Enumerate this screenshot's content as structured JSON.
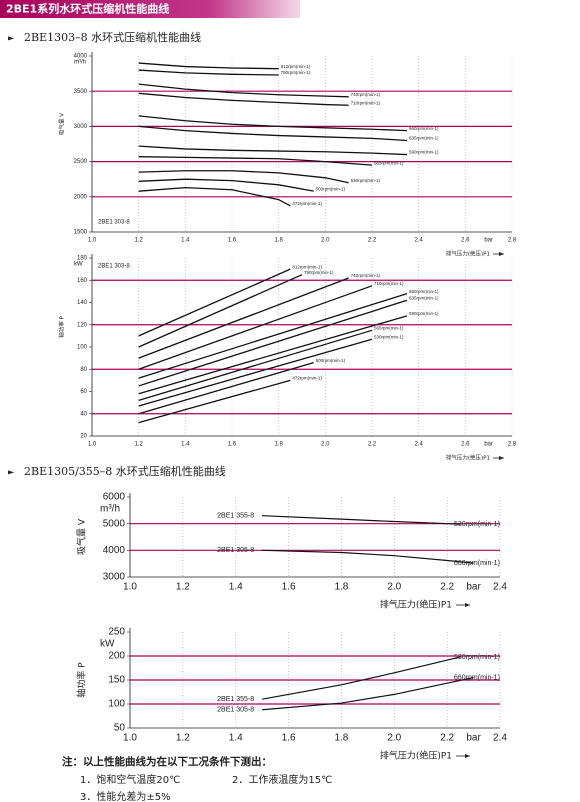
{
  "header": {
    "title": "2BE1系列水环式压缩机性能曲线"
  },
  "sections": [
    {
      "title": "2BE1303–8 水环式压缩机性能曲线"
    },
    {
      "title": "2BE1305/355–8 水环式压缩机性能曲线"
    }
  ],
  "chart_data": [
    {
      "type": "line",
      "y_unit": "m³/h",
      "y_label": "吸气量 V",
      "x_unit": "bar",
      "x_label": "排气压力(绝压)P1",
      "annotation": "2BE1 303-8",
      "xlim": [
        1,
        2.8
      ],
      "ylim": [
        1500,
        4000
      ],
      "xticks": [
        {
          "value": 1,
          "label": "1.0"
        },
        1.2,
        1.4,
        1.6,
        1.8,
        {
          "value": 2,
          "label": "2.0"
        },
        2.2,
        2.4,
        2.6,
        2.8
      ],
      "yticks": [
        1500,
        2000,
        2500,
        3000,
        3500,
        4000
      ],
      "ref_lines": [
        2000,
        2500,
        3000,
        3500
      ],
      "ref_color": "#b0005c",
      "color": "#111111",
      "series": [
        {
          "name": "812rpm(min-1)",
          "x": [
            1.2,
            1.4,
            1.6,
            1.8
          ],
          "values": [
            3900,
            3850,
            3830,
            3820
          ]
        },
        {
          "name": "790rpm(min-1)",
          "x": [
            1.2,
            1.4,
            1.6,
            1.8
          ],
          "values": [
            3800,
            3760,
            3740,
            3730
          ]
        },
        {
          "name": "740rpm(min-1)",
          "x": [
            1.2,
            1.4,
            1.6,
            1.8,
            2,
            2.1
          ],
          "values": [
            3600,
            3530,
            3480,
            3450,
            3430,
            3420
          ]
        },
        {
          "name": "710rpm(min-1)",
          "x": [
            1.2,
            1.4,
            1.6,
            1.8,
            2,
            2.1
          ],
          "values": [
            3470,
            3410,
            3370,
            3340,
            3310,
            3300
          ]
        },
        {
          "name": "660rpm(min-1)",
          "x": [
            1.2,
            1.4,
            1.6,
            1.8,
            2,
            2.2,
            2.35
          ],
          "values": [
            3150,
            3080,
            3030,
            3000,
            2980,
            2960,
            2940
          ]
        },
        {
          "name": "635rpm(min-1)",
          "x": [
            1.2,
            1.4,
            1.6,
            1.8,
            2,
            2.2,
            2.35
          ],
          "values": [
            3000,
            2940,
            2900,
            2870,
            2850,
            2830,
            2800
          ]
        },
        {
          "name": "590rpm(min-1)",
          "x": [
            1.2,
            1.4,
            1.6,
            1.8,
            2,
            2.2,
            2.35
          ],
          "values": [
            2720,
            2680,
            2660,
            2650,
            2640,
            2620,
            2600
          ]
        },
        {
          "name": "565rpm(min-1)",
          "x": [
            1.2,
            1.4,
            1.6,
            1.8,
            2,
            2.2
          ],
          "values": [
            2570,
            2560,
            2550,
            2540,
            2500,
            2450
          ]
        },
        {
          "name": "530rpm(min-1)",
          "x": [
            1.2,
            1.4,
            1.6,
            1.8,
            2,
            2.1
          ],
          "values": [
            2350,
            2370,
            2370,
            2340,
            2270,
            2200
          ]
        },
        {
          "name": "500rpm(min-1)",
          "x": [
            1.2,
            1.4,
            1.6,
            1.8,
            1.95
          ],
          "values": [
            2220,
            2250,
            2230,
            2170,
            2080
          ]
        },
        {
          "name": "472rpm(min-1)",
          "x": [
            1.2,
            1.4,
            1.6,
            1.8,
            1.85
          ],
          "values": [
            2080,
            2130,
            2100,
            1960,
            1870
          ]
        }
      ]
    },
    {
      "type": "line",
      "y_unit": "kW",
      "y_label": "轴功率 P",
      "x_unit": "bar",
      "x_label": "排气压力(绝压)P1",
      "annotation": "2BE1 303-8",
      "xlim": [
        1,
        2.8
      ],
      "ylim": [
        20,
        180
      ],
      "xticks": [
        {
          "value": 1,
          "label": "1.0"
        },
        1.2,
        1.4,
        1.6,
        1.8,
        {
          "value": 2,
          "label": "2.0"
        },
        2.2,
        2.4,
        2.6,
        2.8
      ],
      "yticks": [
        20,
        40,
        60,
        80,
        100,
        120,
        140,
        160,
        180
      ],
      "ref_lines": [
        40,
        80,
        120,
        160
      ],
      "ref_color": "#b0005c",
      "color": "#111111",
      "series": [
        {
          "name": "812rpm(min-1)",
          "x": [
            1.2,
            1.85
          ],
          "values": [
            110,
            170
          ]
        },
        {
          "name": "790rpm(min-1)",
          "x": [
            1.2,
            1.9
          ],
          "values": [
            100,
            165
          ]
        },
        {
          "name": "740rpm(min-1)",
          "x": [
            1.2,
            2.1
          ],
          "values": [
            90,
            162
          ]
        },
        {
          "name": "710rpm(min-1)",
          "x": [
            1.2,
            2.2
          ],
          "values": [
            80,
            155
          ]
        },
        {
          "name": "660rpm(min-1)",
          "x": [
            1.2,
            2.35
          ],
          "values": [
            72,
            148
          ]
        },
        {
          "name": "635rpm(min-1)",
          "x": [
            1.2,
            2.35
          ],
          "values": [
            65,
            142
          ]
        },
        {
          "name": "590rpm(min-1)",
          "x": [
            1.2,
            2.35
          ],
          "values": [
            58,
            128
          ]
        },
        {
          "name": "565rpm(min-1)",
          "x": [
            1.2,
            2.2
          ],
          "values": [
            52,
            115
          ]
        },
        {
          "name": "530rpm(min-1)",
          "x": [
            1.2,
            2.2
          ],
          "values": [
            47,
            107
          ]
        },
        {
          "name": "500rpm(min-1)",
          "x": [
            1.2,
            1.95
          ],
          "values": [
            40,
            86
          ]
        },
        {
          "name": "472rpm(min-1)",
          "x": [
            1.2,
            1.85
          ],
          "values": [
            32,
            70
          ]
        }
      ]
    },
    {
      "type": "line",
      "y_unit": "m³/h",
      "y_label": "吸气量 V",
      "x_unit": "bar",
      "x_label": "排气压力(绝压)P1",
      "xlim": [
        1,
        2.4
      ],
      "ylim": [
        3000,
        6000
      ],
      "xticks": [
        {
          "value": 1,
          "label": "1.0"
        },
        1.2,
        1.4,
        1.6,
        1.8,
        {
          "value": 2,
          "label": "2.0"
        },
        2.2,
        2.4
      ],
      "yticks": [
        3000,
        4000,
        5000,
        6000
      ],
      "ref_lines": [
        4000,
        5000
      ],
      "ref_color": "#b0005c",
      "color": "#111111",
      "series": [
        {
          "name": "2BE1 355-8",
          "label": "530rpm(min-1)",
          "x": [
            1.5,
            1.8,
            2,
            2.25
          ],
          "values": [
            5300,
            5170,
            5080,
            4980
          ]
        },
        {
          "name": "2BE1 305-8",
          "label": "660rpm(min-1)",
          "x": [
            1.5,
            1.8,
            2,
            2.2,
            2.3
          ],
          "values": [
            4000,
            3920,
            3800,
            3620,
            3520
          ]
        }
      ]
    },
    {
      "type": "line",
      "y_unit": "kW",
      "y_label": "轴功率 P",
      "x_unit": "bar",
      "x_label": "排气压力(绝压)P1",
      "xlim": [
        1,
        2.4
      ],
      "ylim": [
        50,
        250
      ],
      "xticks": [
        {
          "value": 1,
          "label": "1.0"
        },
        1.2,
        1.4,
        1.6,
        1.8,
        {
          "value": 2,
          "label": "2.0"
        },
        2.2,
        2.4
      ],
      "yticks": [
        50,
        100,
        150,
        200,
        250
      ],
      "ref_lines": [
        100,
        150,
        200
      ],
      "ref_color": "#b0005c",
      "color": "#111111",
      "series": [
        {
          "name": "2BE1 355-8",
          "label": "530rpm(min-1)",
          "x": [
            1.5,
            1.8,
            2,
            2.25
          ],
          "values": [
            110,
            140,
            165,
            198
          ]
        },
        {
          "name": "2BE1 305-8",
          "label": "660rpm(min-1)",
          "x": [
            1.5,
            1.8,
            2,
            2.3
          ],
          "values": [
            88,
            102,
            120,
            155
          ]
        }
      ]
    }
  ],
  "notes": {
    "title": "注：以上性能曲线为在以下工况条件下测出：",
    "items": [
      "1．饱和空气温度20℃",
      "2．工作液温度为15℃",
      "3．性能允差为±5%"
    ]
  }
}
